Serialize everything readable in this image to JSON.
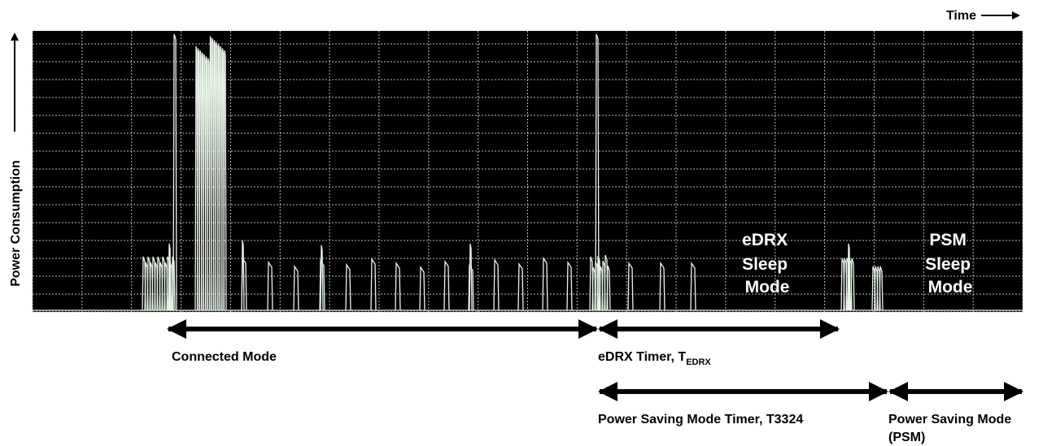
{
  "axis_labels": {
    "x": "Time",
    "y": "Power Consumption"
  },
  "regions": [
    {
      "lines": [
        "eDRX",
        "Sleep",
        "Mode"
      ]
    },
    {
      "lines": [
        "PSM",
        "Sleep",
        "Mode"
      ]
    }
  ],
  "timers": [
    {
      "label": "Connected Mode"
    },
    {
      "label": "eDRX Timer, T",
      "subscript": "EDRX"
    },
    {
      "label": "Power Saving Mode Timer, T3324"
    },
    {
      "lines": [
        "Power Saving Mode",
        "(PSM)"
      ]
    }
  ]
}
